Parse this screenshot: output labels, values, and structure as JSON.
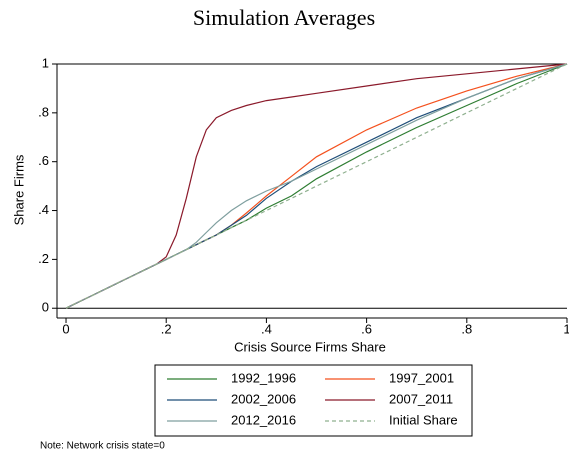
{
  "chart_data": {
    "type": "line",
    "title": "Simulation Averages",
    "x_label": "Crisis Source Firms Share",
    "y_label": "Share Firms",
    "note": "Note:  Network crisis state=0",
    "x": [
      0,
      0.05,
      0.1,
      0.15,
      0.18,
      0.2,
      0.22,
      0.24,
      0.26,
      0.28,
      0.3,
      0.33,
      0.36,
      0.4,
      0.45,
      0.5,
      0.6,
      0.7,
      0.8,
      0.9,
      1
    ],
    "series": [
      {
        "name": "1992_1996",
        "color": "#2e7d32",
        "values": [
          0,
          0.05,
          0.1,
          0.15,
          0.18,
          0.2,
          0.22,
          0.24,
          0.26,
          0.28,
          0.3,
          0.33,
          0.36,
          0.41,
          0.46,
          0.53,
          0.64,
          0.74,
          0.83,
          0.92,
          1
        ]
      },
      {
        "name": "1997_2001",
        "color": "#f4511e",
        "values": [
          0,
          0.05,
          0.1,
          0.15,
          0.18,
          0.2,
          0.22,
          0.24,
          0.26,
          0.28,
          0.3,
          0.34,
          0.39,
          0.46,
          0.54,
          0.62,
          0.73,
          0.82,
          0.89,
          0.95,
          1
        ]
      },
      {
        "name": "2002_2006",
        "color": "#1f4e79",
        "values": [
          0,
          0.05,
          0.1,
          0.15,
          0.18,
          0.2,
          0.22,
          0.24,
          0.26,
          0.28,
          0.3,
          0.34,
          0.38,
          0.45,
          0.52,
          0.58,
          0.68,
          0.78,
          0.86,
          0.94,
          1
        ]
      },
      {
        "name": "2007_2011",
        "color": "#8b1a2b",
        "values": [
          0,
          0.05,
          0.1,
          0.15,
          0.18,
          0.21,
          0.3,
          0.45,
          0.62,
          0.73,
          0.78,
          0.81,
          0.83,
          0.85,
          0.865,
          0.88,
          0.91,
          0.94,
          0.96,
          0.98,
          1
        ]
      },
      {
        "name": "2012_2016",
        "color": "#7f9f9f",
        "values": [
          0,
          0.05,
          0.1,
          0.15,
          0.18,
          0.2,
          0.22,
          0.24,
          0.27,
          0.31,
          0.35,
          0.4,
          0.44,
          0.48,
          0.52,
          0.57,
          0.67,
          0.77,
          0.86,
          0.94,
          1
        ]
      },
      {
        "name": "Initial Share",
        "color": "#8fb08f",
        "dashed": true,
        "values": [
          0,
          0.05,
          0.1,
          0.15,
          0.18,
          0.2,
          0.22,
          0.24,
          0.26,
          0.28,
          0.3,
          0.33,
          0.36,
          0.4,
          0.45,
          0.5,
          0.6,
          0.7,
          0.8,
          0.9,
          1
        ]
      }
    ],
    "xlim": [
      -0.018,
      1
    ],
    "ylim": [
      -0.04,
      1
    ],
    "xticks": [
      0,
      {
        "value": 0.2,
        "label": ".2"
      },
      {
        "value": 0.4,
        "label": ".4"
      },
      {
        "value": 0.6,
        "label": ".6"
      },
      {
        "value": 0.8,
        "label": ".8"
      },
      1
    ],
    "yticks": [
      0,
      {
        "value": 0.2,
        "label": ".2"
      },
      {
        "value": 0.4,
        "label": ".4"
      },
      {
        "value": 0.6,
        "label": ".6"
      },
      {
        "value": 0.8,
        "label": ".8"
      },
      1
    ],
    "ylines": [
      0,
      1
    ]
  }
}
